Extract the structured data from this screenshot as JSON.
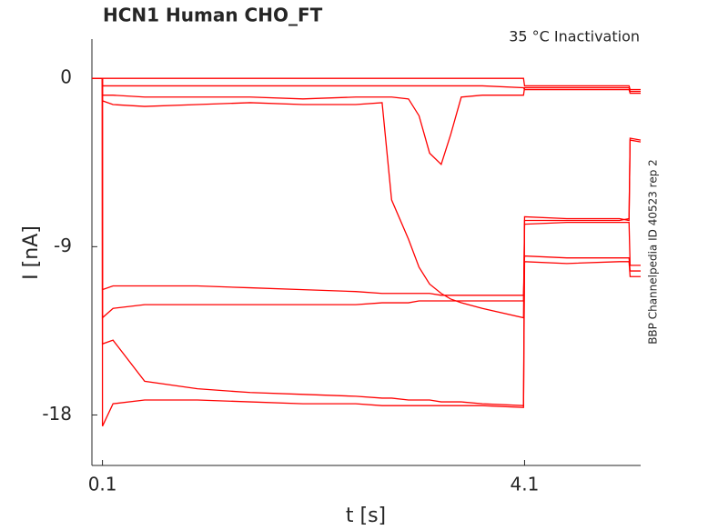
{
  "chart_data": {
    "type": "line",
    "title": "HCN1  Human  CHO_FT",
    "annotation": "35 °C  Inactivation",
    "side_label": "BBP Channelpedia ID 40523 rep 2",
    "x_label": "t [s]",
    "y_label": "I [nA]",
    "xlim": [
      0,
      5.2
    ],
    "ylim": [
      -20.7,
      2.1
    ],
    "xticks": [
      0.1,
      4.1
    ],
    "yticks": [
      -18,
      -9,
      0
    ],
    "x": [
      0,
      0.099,
      0.1,
      0.2,
      0.5,
      1,
      1.5,
      2,
      2.5,
      2.75,
      2.84,
      3,
      3.1,
      3.2,
      3.31,
      3.4,
      3.5,
      3.7,
      4.09,
      4.1,
      4.5,
      5,
      5.09,
      5.1,
      5.2
    ],
    "series": [
      {
        "color": "#ff0000",
        "values": [
          0,
          0,
          0,
          0,
          0,
          0,
          0,
          0,
          0,
          0,
          0,
          0,
          0,
          0,
          0,
          0,
          0,
          0,
          0,
          -0.4,
          -0.4,
          -0.4,
          -0.4,
          -0.6,
          -0.6
        ]
      },
      {
        "color": "#ff0000",
        "values": [
          0,
          0,
          -0.4,
          -0.4,
          -0.4,
          -0.4,
          -0.4,
          -0.4,
          -0.4,
          -0.4,
          -0.4,
          -0.4,
          -0.4,
          -0.4,
          -0.4,
          -0.4,
          -0.4,
          -0.4,
          -0.5,
          -0.6,
          -0.6,
          -0.6,
          -0.6,
          -0.8,
          -0.8
        ]
      },
      {
        "color": "#ff0000",
        "values": [
          0,
          0,
          -1.2,
          -1.4,
          -1.5,
          -1.4,
          -1.3,
          -1.4,
          -1.4,
          -1.3,
          -6.5,
          -8.6,
          -10.1,
          -11.0,
          -11.5,
          -11.8,
          -12.0,
          -12.3,
          -12.8,
          -7.4,
          -7.5,
          -7.5,
          -7.6,
          -3.2,
          -3.3
        ]
      },
      {
        "color": "#ff0000",
        "values": [
          0,
          0,
          -0.9,
          -0.9,
          -1.0,
          -1.0,
          -1.0,
          -1.1,
          -1.0,
          -1.0,
          -1.0,
          -1.1,
          -2.0,
          -4.0,
          -4.6,
          -3.0,
          -1.0,
          -0.9,
          -0.9,
          -0.5,
          -0.5,
          -0.5,
          -0.5,
          -0.7,
          -0.7
        ]
      },
      {
        "color": "#ff0000",
        "values": [
          0,
          0,
          -11.3,
          -11.1,
          -11.1,
          -11.1,
          -11.2,
          -11.3,
          -11.4,
          -11.5,
          -11.5,
          -11.5,
          -11.5,
          -11.5,
          -11.6,
          -11.6,
          -11.6,
          -11.6,
          -11.6,
          -9.5,
          -9.6,
          -9.6,
          -9.6,
          -10.3,
          -10.3
        ]
      },
      {
        "color": "#ff0000",
        "values": [
          0,
          0,
          -12.8,
          -12.3,
          -12.1,
          -12.1,
          -12.1,
          -12.1,
          -12.1,
          -12.0,
          -12.0,
          -12.0,
          -11.9,
          -11.9,
          -11.9,
          -11.9,
          -11.9,
          -11.9,
          -11.9,
          -7.8,
          -7.7,
          -7.7,
          -7.7,
          -10.0,
          -10.0
        ]
      },
      {
        "color": "#ff0000",
        "values": [
          0,
          0,
          -14.2,
          -14.0,
          -16.2,
          -16.6,
          -16.8,
          -16.9,
          -17.0,
          -17.1,
          -17.1,
          -17.2,
          -17.2,
          -17.2,
          -17.3,
          -17.3,
          -17.3,
          -17.4,
          -17.5,
          -9.8,
          -9.9,
          -9.8,
          -9.8,
          -10.6,
          -10.6
        ]
      },
      {
        "color": "#ff0000",
        "values": [
          0,
          0,
          -18.6,
          -17.4,
          -17.2,
          -17.2,
          -17.3,
          -17.4,
          -17.4,
          -17.5,
          -17.5,
          -17.5,
          -17.5,
          -17.5,
          -17.5,
          -17.5,
          -17.5,
          -17.5,
          -17.6,
          -7.6,
          -7.6,
          -7.6,
          -7.5,
          -3.3,
          -3.4
        ]
      }
    ]
  }
}
